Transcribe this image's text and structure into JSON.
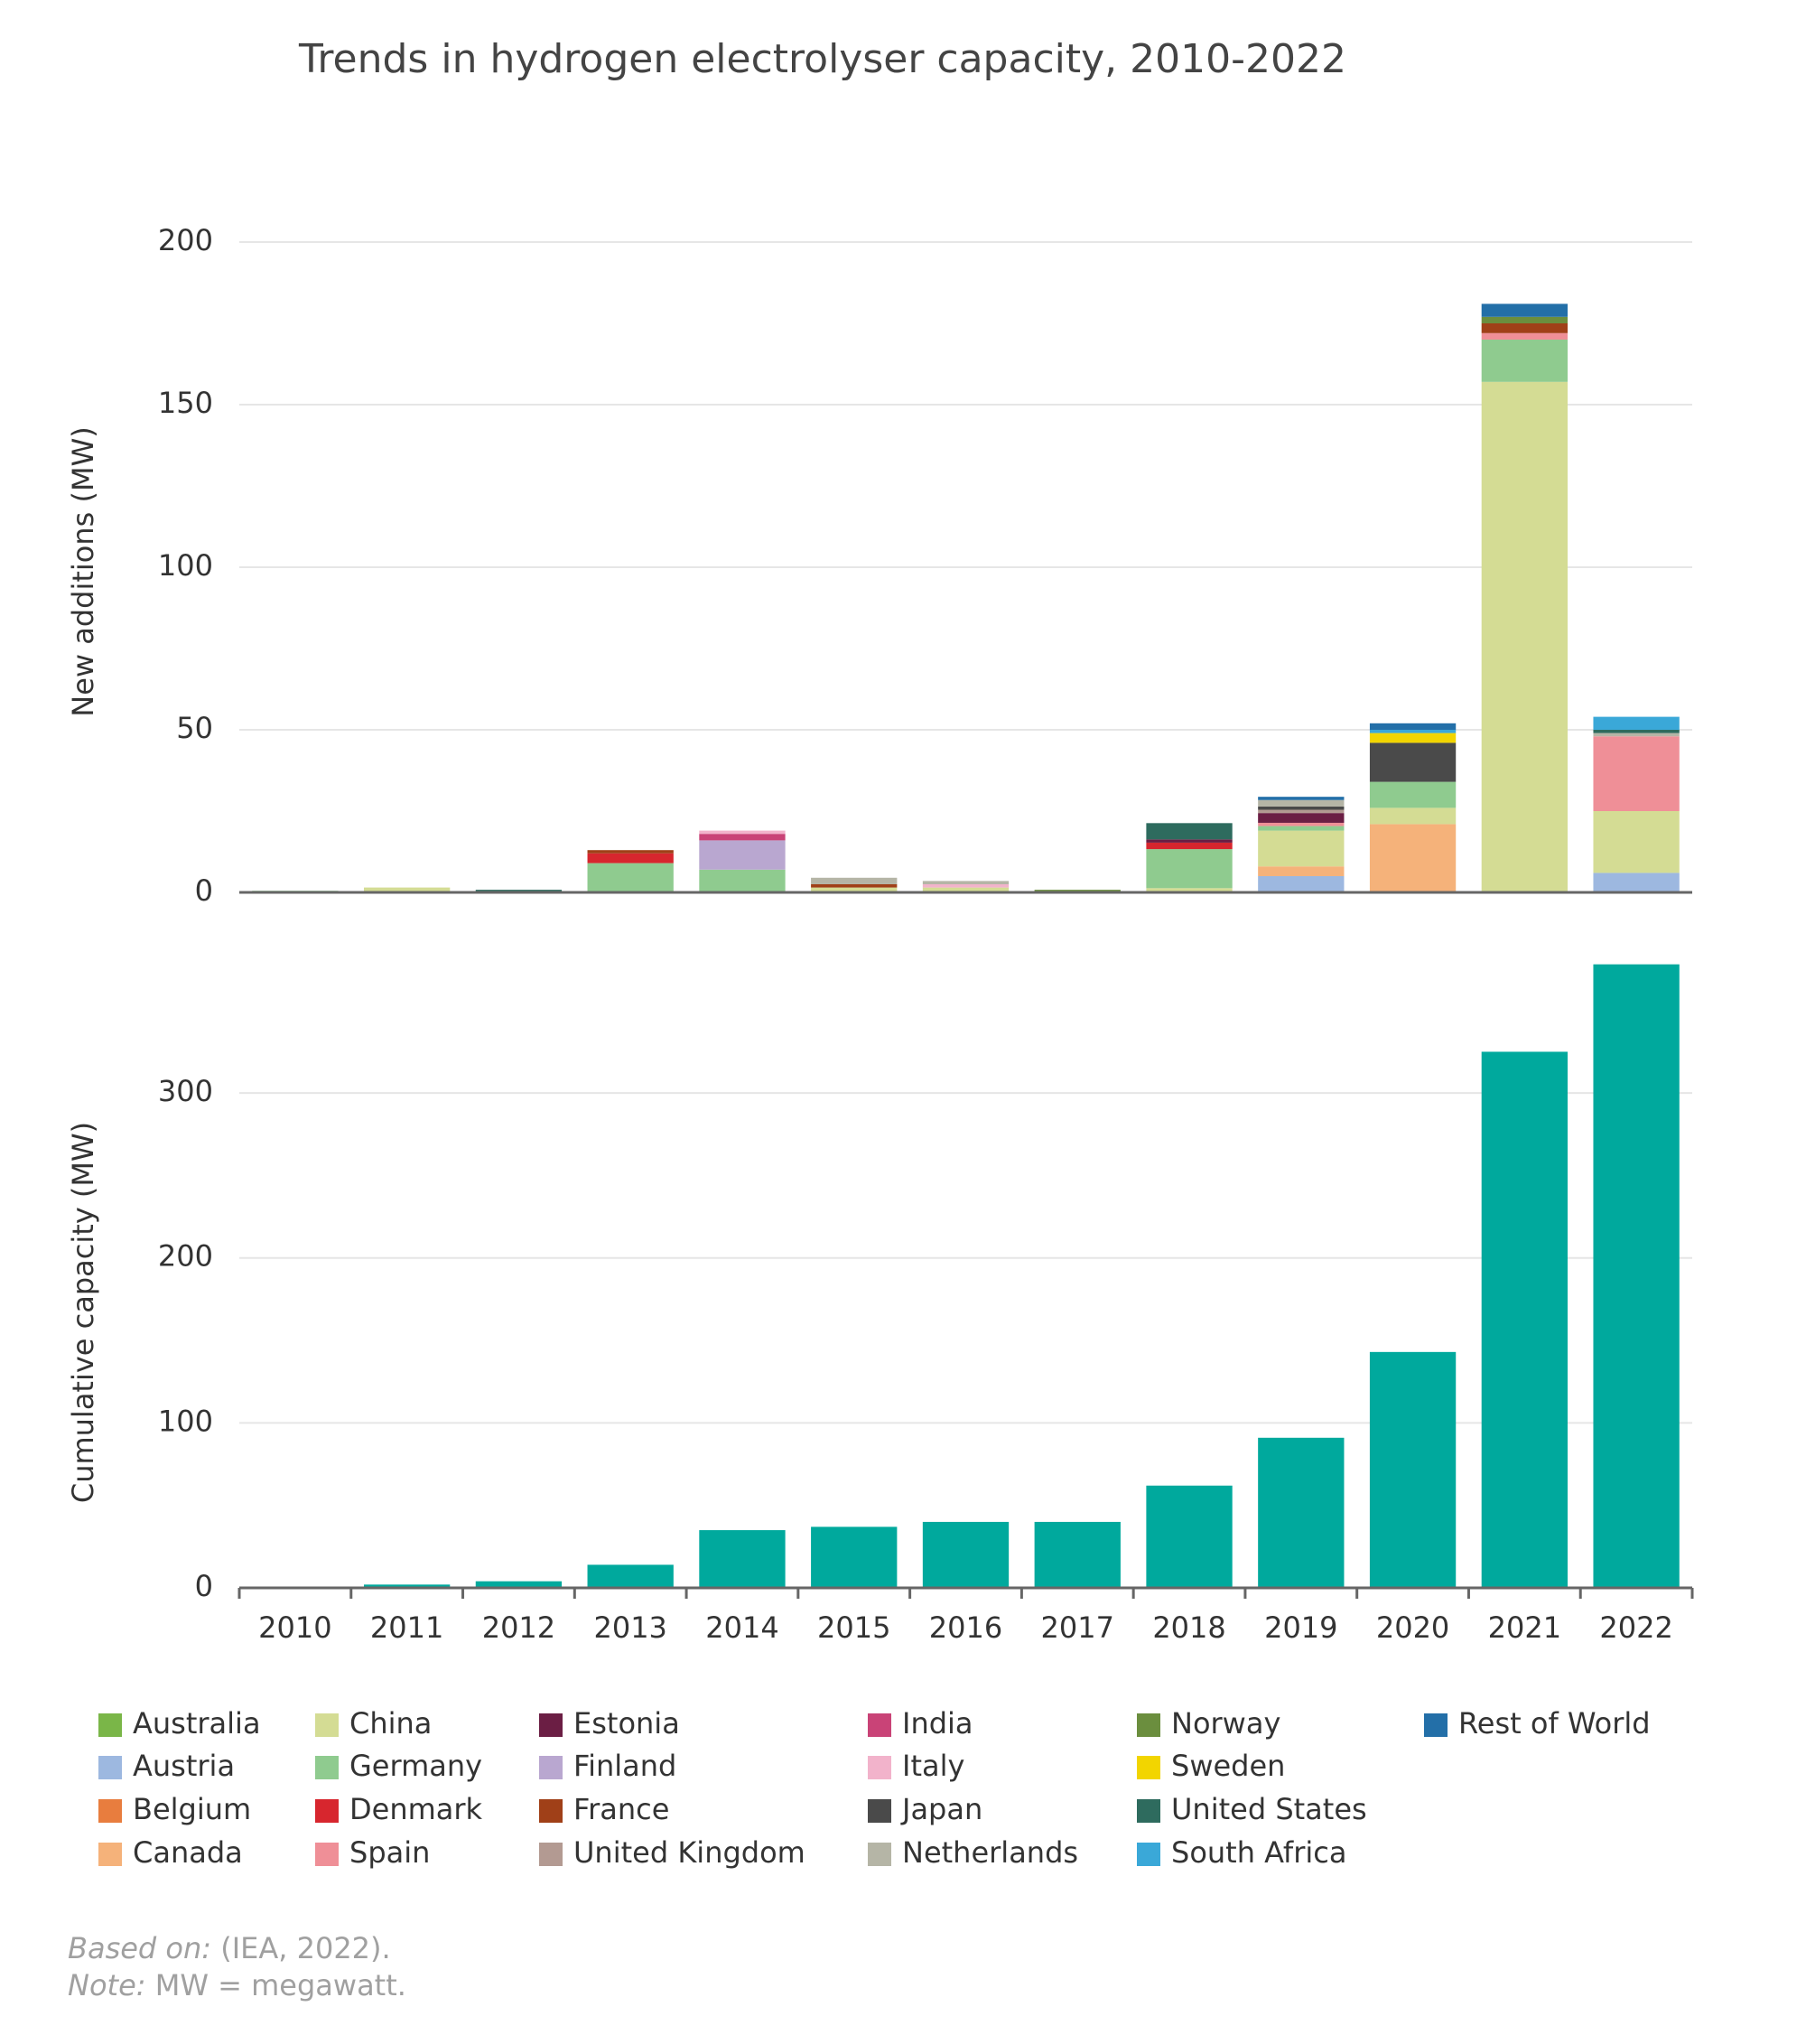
{
  "chart_data": [
    {
      "type": "stacked-bar",
      "title": "Trends in hydrogen electrolyser capacity, 2010-2022",
      "ylabel": "New additions (MW)",
      "ylim": [
        0,
        200
      ],
      "yticks": [
        0,
        50,
        100,
        150,
        200
      ],
      "grid": true,
      "series": [
        {
          "name": "Australia",
          "color": "#7ab648",
          "values": [
            0,
            0,
            0,
            0,
            0,
            0,
            0,
            0,
            0,
            0,
            0,
            0,
            0
          ]
        },
        {
          "name": "Austria",
          "color": "#9db8e0",
          "values": [
            0,
            0,
            0,
            0,
            0,
            0,
            0,
            0,
            0,
            5,
            0,
            0,
            6
          ]
        },
        {
          "name": "Belgium",
          "color": "#e87d3e",
          "values": [
            0,
            0,
            0,
            0,
            0,
            0,
            0,
            0,
            0,
            0,
            0,
            0,
            0
          ]
        },
        {
          "name": "Canada",
          "color": "#f5b27a",
          "values": [
            0,
            0,
            0,
            0,
            0,
            0,
            0,
            0,
            0,
            3,
            21,
            0,
            0
          ]
        },
        {
          "name": "China",
          "color": "#d4dc94",
          "values": [
            0,
            1.5,
            0,
            0,
            0,
            1.5,
            1.5,
            0,
            1.3,
            11,
            5,
            157,
            19
          ]
        },
        {
          "name": "Germany",
          "color": "#8fcb8f",
          "values": [
            0.5,
            0,
            0,
            9,
            7,
            0,
            0,
            0,
            12,
            1.4,
            8,
            13,
            0
          ]
        },
        {
          "name": "Denmark",
          "color": "#d7262e",
          "values": [
            0,
            0,
            0,
            3,
            0,
            0,
            0,
            0,
            2,
            0,
            0,
            0,
            0
          ]
        },
        {
          "name": "Spain",
          "color": "#ef8f97",
          "values": [
            0,
            0,
            0,
            0,
            0,
            0,
            0,
            0,
            0,
            1,
            0,
            2,
            23
          ]
        },
        {
          "name": "Estonia",
          "color": "#6b1e44",
          "values": [
            0,
            0,
            0,
            0,
            0,
            0,
            0,
            0,
            1,
            3,
            0,
            0,
            0
          ]
        },
        {
          "name": "Finland",
          "color": "#b9a7d0",
          "values": [
            0,
            0,
            0,
            0,
            9,
            0,
            0,
            0,
            0,
            0,
            0,
            0,
            0
          ]
        },
        {
          "name": "France",
          "color": "#a04018",
          "values": [
            0,
            0,
            0,
            1,
            0,
            1,
            0,
            0,
            0,
            0,
            0,
            3,
            0
          ]
        },
        {
          "name": "United Kingdom",
          "color": "#b39a92",
          "values": [
            0,
            0,
            0,
            0,
            0,
            0,
            0,
            0,
            0,
            1,
            0,
            0,
            0
          ]
        },
        {
          "name": "India",
          "color": "#c94377",
          "values": [
            0,
            0,
            0,
            0,
            2,
            0,
            0,
            0,
            0,
            0,
            0,
            0,
            0
          ]
        },
        {
          "name": "Italy",
          "color": "#f2b3cb",
          "values": [
            0,
            0,
            0,
            0,
            1,
            0,
            1,
            0,
            0,
            0,
            0,
            0,
            0
          ]
        },
        {
          "name": "Japan",
          "color": "#4a4a4a",
          "values": [
            0,
            0,
            0,
            0,
            0,
            0,
            0,
            0,
            0,
            1,
            12,
            0,
            0
          ]
        },
        {
          "name": "Netherlands",
          "color": "#b5b5a6",
          "values": [
            0,
            0,
            0,
            0,
            0,
            2,
            1,
            0,
            0,
            2,
            0,
            0,
            1
          ]
        },
        {
          "name": "Norway",
          "color": "#6b8e3e",
          "values": [
            0,
            0,
            0,
            0,
            0,
            0,
            0,
            0.8,
            0,
            0,
            0,
            2,
            0
          ]
        },
        {
          "name": "Sweden",
          "color": "#f2d500",
          "values": [
            0,
            0,
            0,
            0,
            0,
            0,
            0,
            0,
            0,
            0,
            3,
            0,
            0
          ]
        },
        {
          "name": "United States",
          "color": "#2e6b5e",
          "values": [
            0,
            0,
            0.8,
            0,
            0,
            0,
            0,
            0,
            5,
            0,
            0,
            0,
            1
          ]
        },
        {
          "name": "South Africa",
          "color": "#3aa8d8",
          "values": [
            0,
            0,
            0,
            0,
            0,
            0,
            0,
            0,
            0,
            0,
            1,
            0,
            4
          ]
        },
        {
          "name": "Rest of World",
          "color": "#236fa8",
          "values": [
            0,
            0,
            0,
            0,
            0,
            0,
            0,
            0,
            0,
            1,
            2,
            4,
            0
          ]
        }
      ]
    },
    {
      "type": "bar",
      "ylabel": "Cumulative capacity (MW)",
      "color": "#00a99d",
      "categories": [
        "2010",
        "2011",
        "2012",
        "2013",
        "2014",
        "2015",
        "2016",
        "2017",
        "2018",
        "2019",
        "2020",
        "2021",
        "2022"
      ],
      "values": [
        0.5,
        2,
        4,
        14,
        35,
        37,
        40,
        40,
        62,
        91,
        143,
        325,
        378
      ],
      "ylim": [
        0,
        380
      ],
      "yticks": [
        0,
        100,
        200,
        300
      ],
      "grid": true
    }
  ],
  "footer": {
    "source_label": "Based on:",
    "source": "(IEA, 2022).",
    "note_label": "Note:",
    "note": "MW = megawatt."
  }
}
